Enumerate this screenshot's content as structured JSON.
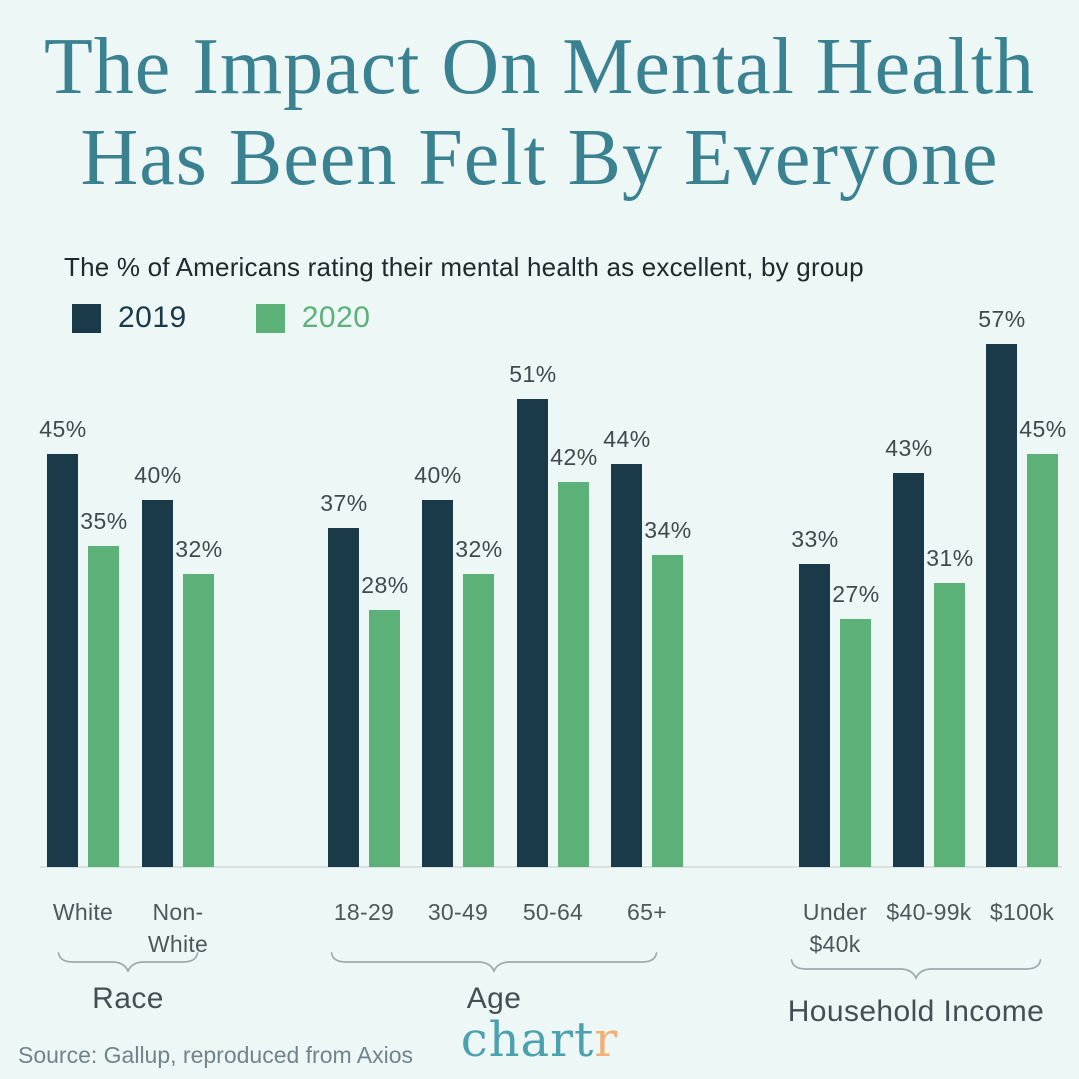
{
  "title": {
    "line1": "The Impact On Mental Health",
    "line2": "Has Been Felt By Everyone"
  },
  "subtitle": "The % of Americans rating their mental health as excellent, by group",
  "legend": [
    {
      "label": "2019",
      "color": "#1a3949"
    },
    {
      "label": "2020",
      "color": "#5cb178"
    }
  ],
  "source": "Source: Gallup, reproduced from Axios",
  "logo": {
    "part1": "chart",
    "part2": "r",
    "color1": "#4ba1ae",
    "color2": "#f1b077"
  },
  "colors": {
    "background": "#edf7f6",
    "title_teal": "#3a8291",
    "bar_2019": "#1a3949",
    "bar_2020": "#5cb178",
    "baseline": "#d8e1e0",
    "bracket": "#9cabae",
    "value_label": "#3f4a4f",
    "category_label": "#4e585c",
    "group_label": "#454e52",
    "source_gray": "#71848b"
  },
  "chart_data": {
    "type": "bar",
    "title": "The % of Americans rating their mental health as excellent, by group",
    "unit": "%",
    "ylim": [
      0,
      60
    ],
    "grid": false,
    "legend_position": "top-left",
    "series_names": [
      "2019",
      "2020"
    ],
    "series_colors": [
      "#1a3949",
      "#5cb178"
    ],
    "groups": [
      {
        "label": "Race",
        "items": [
          {
            "category": "White",
            "display": "White",
            "values": {
              "2019": 45,
              "2020": 35
            }
          },
          {
            "category": "Non-White",
            "display": "Non-\nWhite",
            "values": {
              "2019": 40,
              "2020": 32
            }
          }
        ]
      },
      {
        "label": "Age",
        "items": [
          {
            "category": "18-29",
            "display": "18-29",
            "values": {
              "2019": 37,
              "2020": 28
            }
          },
          {
            "category": "30-49",
            "display": "30-49",
            "values": {
              "2019": 40,
              "2020": 32
            }
          },
          {
            "category": "50-64",
            "display": "50-64",
            "values": {
              "2019": 51,
              "2020": 42
            }
          },
          {
            "category": "65+",
            "display": "65+",
            "values": {
              "2019": 44,
              "2020": 34
            }
          }
        ]
      },
      {
        "label": "Household Income",
        "items": [
          {
            "category": "Under $40k",
            "display": "Under\n$40k",
            "values": {
              "2019": 33,
              "2020": 27
            }
          },
          {
            "category": "$40-99k",
            "display": "$40-99k",
            "values": {
              "2019": 43,
              "2020": 31
            }
          },
          {
            "category": "$100k",
            "display": "$100k",
            "values": {
              "2019": 57,
              "2020": 45
            }
          }
        ]
      }
    ]
  }
}
